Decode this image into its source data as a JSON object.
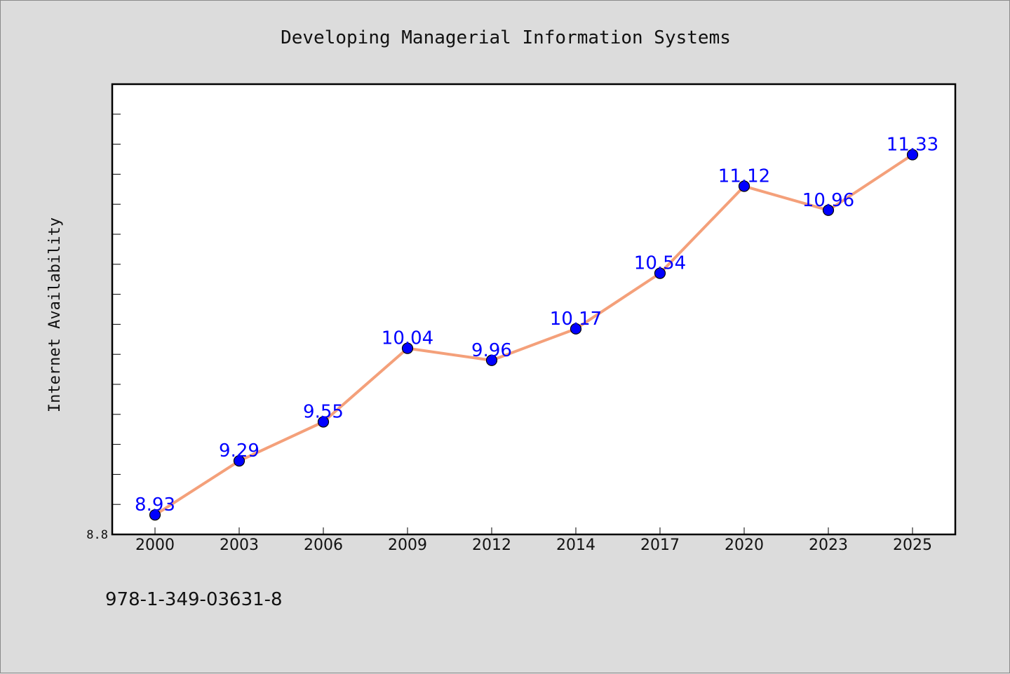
{
  "chart_data": {
    "type": "line",
    "title": "Developing Managerial Information Systems",
    "xlabel": "",
    "ylabel": "Internet Availability",
    "categories": [
      "2000",
      "2003",
      "2006",
      "2009",
      "2012",
      "2014",
      "2017",
      "2020",
      "2023",
      "2025"
    ],
    "series": [
      {
        "values": [
          8.93,
          9.29,
          9.55,
          10.04,
          9.96,
          10.17,
          10.54,
          11.12,
          10.96,
          11.33
        ]
      }
    ],
    "ylim": [
      8.8,
      11.8
    ],
    "yticks_labeled": [
      "8.8"
    ],
    "grid": false,
    "legend": "none",
    "colors": {
      "line": "#f4a07a",
      "marker": "#0000ff",
      "data_label": "#0000ff",
      "background": "#dcdcdc",
      "plot_area": "#ffffff"
    }
  },
  "footer": {
    "isbn": "978-1-349-03631-8"
  }
}
